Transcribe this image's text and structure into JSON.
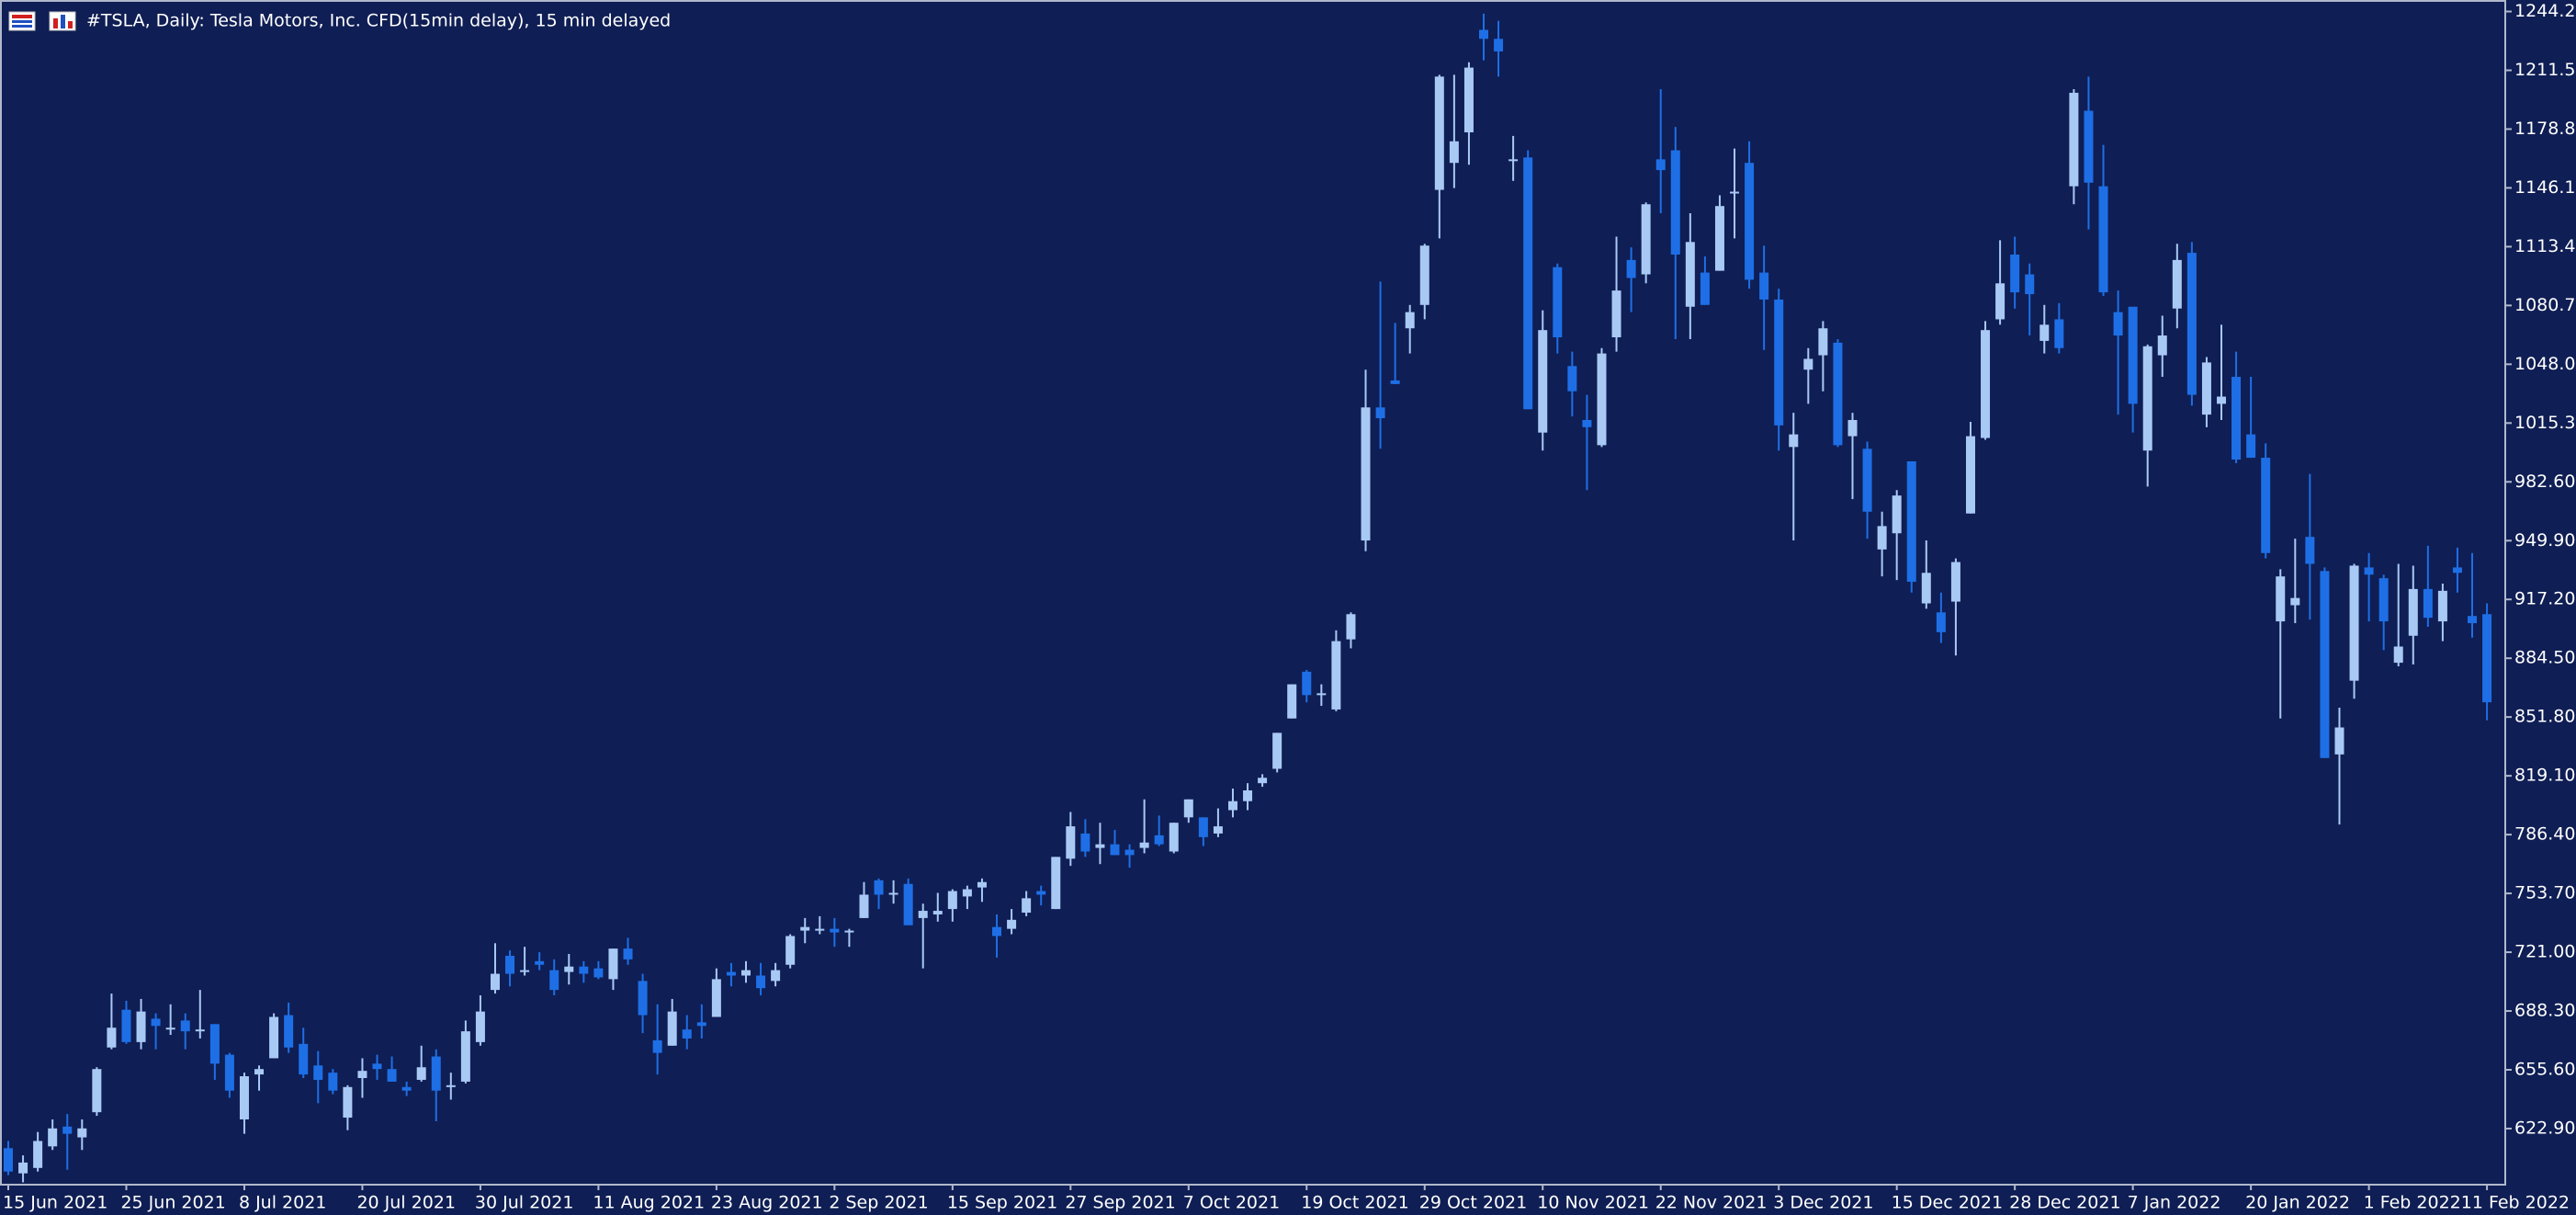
{
  "chart_data": {
    "type": "candlestick",
    "title": "#TSLA, Daily:  Tesla Motors, Inc.  CFD(15min delay), 15 min delayed",
    "up_color": "#a9c9f5",
    "down_color": "#1e6fe6",
    "categories": [
      "15 Jun 2021",
      null,
      null,
      null,
      null,
      null,
      null,
      null,
      "25 Jun 2021",
      null,
      null,
      null,
      null,
      null,
      null,
      null,
      "8 Jul 2021",
      null,
      null,
      null,
      null,
      null,
      null,
      null,
      "20 Jul 2021",
      null,
      null,
      null,
      null,
      null,
      null,
      null,
      "30 Jul 2021",
      null,
      null,
      null,
      null,
      null,
      null,
      null,
      "11 Aug 2021",
      null,
      null,
      null,
      null,
      null,
      null,
      null,
      "23 Aug 2021",
      null,
      null,
      null,
      null,
      null,
      null,
      null,
      "2 Sep 2021",
      null,
      null,
      null,
      null,
      null,
      null,
      null,
      "15 Sep 2021",
      null,
      null,
      null,
      null,
      null,
      null,
      null,
      "27 Sep 2021",
      null,
      null,
      null,
      null,
      null,
      null,
      null,
      "7 Oct 2021",
      null,
      null,
      null,
      null,
      null,
      null,
      null,
      "19 Oct 2021",
      null,
      null,
      null,
      null,
      null,
      null,
      null,
      "29 Oct 2021",
      null,
      null,
      null,
      null,
      null,
      null,
      null,
      "10 Nov 2021",
      null,
      null,
      null,
      null,
      null,
      null,
      null,
      "22 Nov 2021",
      null,
      null,
      null,
      null,
      null,
      null,
      null,
      "3 Dec 2021",
      null,
      null,
      null,
      null,
      null,
      null,
      null,
      "15 Dec 2021",
      null,
      null,
      null,
      null,
      null,
      null,
      null,
      "28 Dec 2021",
      null,
      null,
      null,
      null,
      null,
      null,
      null,
      "7 Jan 2022",
      null,
      null,
      null,
      null,
      null,
      null,
      null,
      "20 Jan 2022",
      null,
      null,
      null,
      null,
      null,
      null,
      null,
      "1 Feb 2022",
      null,
      null,
      null,
      null,
      null,
      null,
      null,
      "11 Feb 2022"
    ],
    "open": [
      612,
      598,
      601,
      613,
      624,
      618,
      632,
      668,
      689,
      671,
      684,
      679,
      683,
      678,
      681,
      664,
      628,
      653,
      662,
      686,
      670,
      658,
      654,
      629,
      651,
      659,
      656,
      646,
      650,
      663,
      647,
      649,
      671,
      700,
      719,
      711,
      716,
      711,
      710,
      713,
      712,
      706,
      723,
      705,
      672,
      669,
      678,
      682,
      685,
      710,
      708,
      708,
      705,
      714,
      733,
      734,
      734,
      732,
      740,
      761,
      753,
      759,
      740,
      742,
      745,
      752,
      757,
      735,
      734,
      743,
      755,
      745,
      773,
      787,
      779,
      781,
      778,
      779,
      786,
      777,
      796,
      796,
      787,
      800,
      805,
      815,
      823,
      851,
      877,
      865,
      856,
      895,
      950,
      1024,
      1039,
      1068,
      1081,
      1145,
      1160,
      1177,
      1234,
      1229,
      1161,
      1163,
      1010,
      1102,
      1047,
      1017,
      1003,
      1063,
      1106,
      1098,
      1162,
      1167,
      1080,
      1099,
      1100,
      1144,
      1160,
      1099,
      1084,
      1002,
      1045,
      1053,
      1060,
      1008,
      1001,
      945,
      954,
      994,
      915,
      910,
      916,
      965,
      1007,
      1073,
      1109,
      1098,
      1061,
      1073,
      1147,
      1189,
      1147,
      1077,
      1080,
      1000,
      1053,
      1079,
      1110,
      1020,
      1026,
      1041,
      1009,
      996,
      905,
      914,
      952,
      933,
      831,
      872,
      935,
      929,
      882,
      897,
      923,
      905,
      935,
      908,
      909
    ],
    "high": [
      616,
      608,
      621,
      628,
      631,
      628,
      657,
      698,
      694,
      695,
      687,
      692,
      687,
      700,
      681,
      665,
      654,
      658,
      687,
      693,
      679,
      666,
      656,
      647,
      662,
      664,
      663,
      649,
      669,
      667,
      654,
      683,
      697,
      726,
      722,
      724,
      721,
      717,
      720,
      716,
      716,
      723,
      729,
      709,
      692,
      695,
      686,
      692,
      712,
      715,
      716,
      715,
      715,
      731,
      740,
      741,
      740,
      734,
      760,
      762,
      761,
      762,
      748,
      754,
      756,
      758,
      762,
      742,
      745,
      755,
      758,
      774,
      799,
      795,
      793,
      789,
      781,
      806,
      797,
      793,
      806,
      796,
      801,
      812,
      815,
      820,
      843,
      870,
      878,
      870,
      900,
      910,
      1045,
      1094,
      1071,
      1081,
      1115,
      1209,
      1209,
      1216,
      1243,
      1239,
      1175,
      1167,
      1078,
      1104,
      1055,
      1031,
      1057,
      1119,
      1113,
      1138,
      1201,
      1180,
      1132,
      1108,
      1142,
      1168,
      1172,
      1114,
      1090,
      1021,
      1057,
      1072,
      1062,
      1021,
      1005,
      966,
      978,
      994,
      950,
      921,
      940,
      1016,
      1072,
      1117,
      1119,
      1104,
      1081,
      1082,
      1201,
      1208,
      1170,
      1089,
      1080,
      1059,
      1075,
      1115,
      1116,
      1052,
      1070,
      1055,
      1041,
      1004,
      934,
      951,
      987,
      935,
      857,
      937,
      943,
      931,
      937,
      936,
      947,
      926,
      946,
      943,
      915
    ],
    "low": [
      597,
      593,
      599,
      611,
      600,
      611,
      630,
      667,
      670,
      667,
      667,
      675,
      667,
      673,
      650,
      640,
      620,
      644,
      662,
      665,
      651,
      637,
      642,
      622,
      640,
      650,
      649,
      641,
      649,
      627,
      639,
      648,
      669,
      698,
      702,
      708,
      711,
      697,
      703,
      704,
      706,
      700,
      714,
      676,
      653,
      669,
      667,
      673,
      685,
      702,
      704,
      697,
      702,
      712,
      726,
      731,
      724,
      724,
      740,
      745,
      748,
      736,
      712,
      738,
      738,
      745,
      749,
      718,
      731,
      741,
      747,
      745,
      769,
      774,
      770,
      775,
      768,
      776,
      780,
      776,
      793,
      780,
      785,
      796,
      800,
      813,
      821,
      851,
      860,
      858,
      855,
      890,
      944,
      1001,
      1037,
      1054,
      1073,
      1118,
      1146,
      1159,
      1217,
      1208,
      1150,
      1023,
      1000,
      1054,
      1019,
      978,
      1002,
      1055,
      1077,
      1093,
      1132,
      1062,
      1062,
      1081,
      1100,
      1118,
      1090,
      1056,
      1000,
      950,
      1026,
      1033,
      1002,
      973,
      951,
      930,
      928,
      921,
      912,
      893,
      886,
      965,
      1006,
      1070,
      1079,
      1064,
      1054,
      1054,
      1137,
      1123,
      1086,
      1020,
      1010,
      980,
      1041,
      1068,
      1025,
      1013,
      1017,
      993,
      996,
      940,
      851,
      904,
      906,
      829,
      792,
      862,
      905,
      889,
      880,
      881,
      902,
      894,
      921,
      896,
      850
    ],
    "close": [
      599,
      604,
      616,
      623,
      620,
      623,
      656,
      679,
      671,
      688,
      680,
      679,
      677,
      678,
      659,
      644,
      652,
      656,
      685,
      668,
      653,
      650,
      644,
      646,
      655,
      656,
      649,
      644,
      657,
      644,
      647,
      677,
      688,
      709,
      709,
      711,
      714,
      700,
      713,
      709,
      707,
      723,
      717,
      686,
      665,
      688,
      673,
      680,
      706,
      708,
      711,
      701,
      711,
      730,
      735,
      734,
      732,
      733,
      753,
      753,
      754,
      736,
      744,
      744,
      755,
      756,
      760,
      730,
      739,
      751,
      753,
      774,
      791,
      777,
      781,
      775,
      775,
      782,
      781,
      793,
      806,
      785,
      791,
      805,
      811,
      818,
      843,
      870,
      864,
      865,
      894,
      909,
      1024,
      1018,
      1037,
      1077,
      1114,
      1208,
      1172,
      1213,
      1229,
      1222,
      1162,
      1023,
      1067,
      1063,
      1033,
      1013,
      1054,
      1089,
      1096,
      1137,
      1156,
      1109,
      1116,
      1081,
      1136,
      1144,
      1095,
      1084,
      1014,
      1009,
      1051,
      1068,
      1003,
      1017,
      966,
      958,
      975,
      927,
      932,
      899,
      938,
      1008,
      1067,
      1093,
      1088,
      1087,
      1070,
      1057,
      1199,
      1149,
      1088,
      1064,
      1026,
      1058,
      1064,
      1106,
      1031,
      1049,
      1030,
      995,
      996,
      943,
      930,
      918,
      937,
      829,
      846,
      936,
      931,
      905,
      891,
      923,
      907,
      922,
      932,
      904,
      860
    ],
    "ylim": [
      591.7,
      1250.6
    ],
    "yticks": [
      {
        "value": 622.9,
        "label": "622.90"
      },
      {
        "value": 655.6,
        "label": "655.60"
      },
      {
        "value": 688.3,
        "label": "688.30"
      },
      {
        "value": 721,
        "label": "721.00"
      },
      {
        "value": 753.7,
        "label": "753.70"
      },
      {
        "value": 786.4,
        "label": "786.40"
      },
      {
        "value": 819.1,
        "label": "819.10"
      },
      {
        "value": 851.8,
        "label": "851.80"
      },
      {
        "value": 884.5,
        "label": "884.50"
      },
      {
        "value": 917.2,
        "label": "917.20"
      },
      {
        "value": 949.9,
        "label": "949.90"
      },
      {
        "value": 982.6,
        "label": "982.60"
      },
      {
        "value": 1015.3,
        "label": "1015.30"
      },
      {
        "value": 1048,
        "label": "1048.00"
      },
      {
        "value": 1080.7,
        "label": "1080.70"
      },
      {
        "value": 1113.4,
        "label": "1113.40"
      },
      {
        "value": 1146.1,
        "label": "1146.10"
      },
      {
        "value": 1178.8,
        "label": "1178.80"
      },
      {
        "value": 1211.5,
        "label": "1211.50"
      },
      {
        "value": 1244.2,
        "label": "1244.20"
      }
    ],
    "grid": false
  }
}
